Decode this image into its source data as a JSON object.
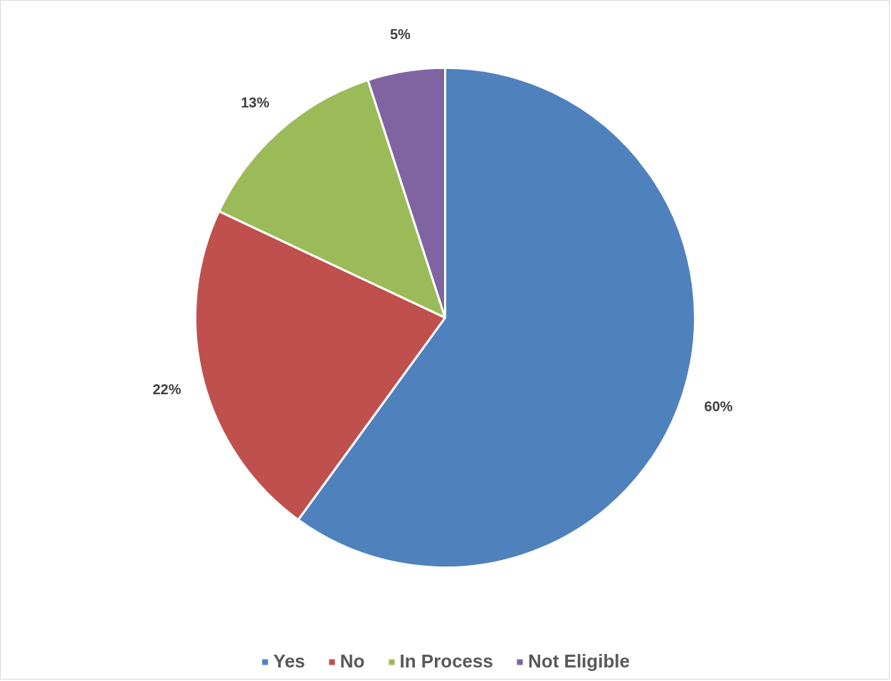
{
  "chart_data": {
    "type": "pie",
    "categories": [
      "Yes",
      "No",
      "In Process",
      "Not Eligible"
    ],
    "values": [
      60,
      22,
      13,
      5
    ],
    "colors": [
      "#4f81bd",
      "#c0504d",
      "#9bbb59",
      "#8064a2"
    ],
    "value_labels": [
      "60%",
      "22%",
      "13%",
      "5%"
    ],
    "legend": "bottom"
  }
}
